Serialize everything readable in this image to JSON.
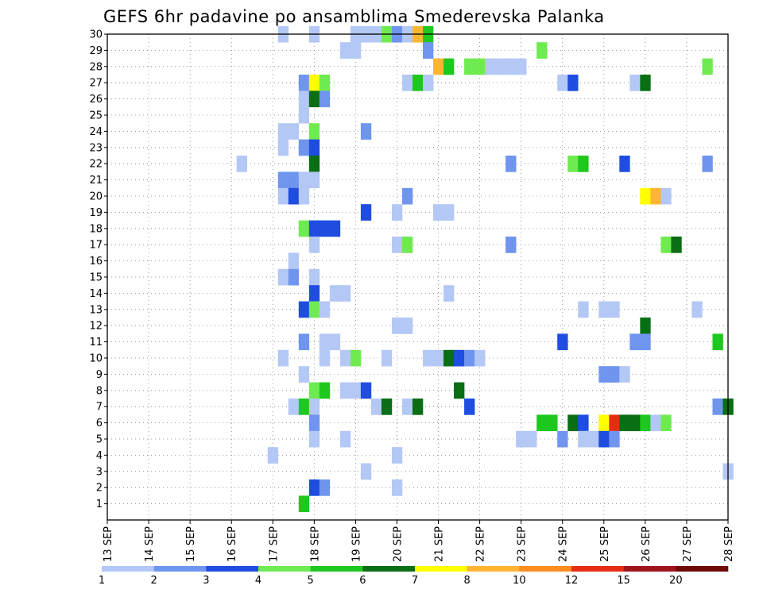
{
  "chart_data": {
    "type": "heatmap",
    "title": "GEFS 6hr padavine po ansamblima Smederevska Palanka",
    "x_tick_labels": [
      "13 SEP",
      "14 SEP",
      "15 SEP",
      "16 SEP",
      "17 SEP",
      "18 SEP",
      "19 SEP",
      "20 SEP",
      "21 SEP",
      "22 SEP",
      "23 SEP",
      "24 SEP",
      "25 SEP",
      "26 SEP",
      "27 SEP",
      "28 SEP"
    ],
    "y_tick_labels": [
      "1",
      "2",
      "3",
      "4",
      "5",
      "6",
      "7",
      "8",
      "9",
      "10",
      "11",
      "12",
      "13",
      "14",
      "15",
      "16",
      "17",
      "18",
      "19",
      "20",
      "21",
      "22",
      "23",
      "24",
      "25",
      "26",
      "27",
      "28",
      "29",
      "30"
    ],
    "x_range_days": [
      0,
      15
    ],
    "y_range_members": [
      0,
      30
    ],
    "time_step_hours": 6,
    "grid": "dotted",
    "legend_position": "bottom",
    "color_scale": {
      "labels": [
        "1",
        "2",
        "3",
        "4",
        "5",
        "6",
        "7",
        "8",
        "10",
        "12",
        "15",
        "20"
      ],
      "colors": [
        "#b4c8f5",
        "#6f95ee",
        "#1e4de0",
        "#6eeb50",
        "#1ec81e",
        "#0a6e14",
        "#ffff00",
        "#ffb432",
        "#ff8c1e",
        "#e62d14",
        "#a0141e",
        "#6e0a0a"
      ]
    },
    "cells": [
      {
        "member": 30,
        "day": 4.25,
        "level": 0
      },
      {
        "member": 30,
        "day": 5.0,
        "level": 0
      },
      {
        "member": 30,
        "day": 6.0,
        "level": 0
      },
      {
        "member": 30,
        "day": 6.25,
        "level": 0
      },
      {
        "member": 30,
        "day": 6.5,
        "level": 0
      },
      {
        "member": 30,
        "day": 6.75,
        "level": 3
      },
      {
        "member": 30,
        "day": 7.0,
        "level": 1
      },
      {
        "member": 30,
        "day": 7.25,
        "level": 0
      },
      {
        "member": 30,
        "day": 7.5,
        "level": 7
      },
      {
        "member": 30,
        "day": 7.75,
        "level": 4
      },
      {
        "member": 29,
        "day": 5.75,
        "level": 0
      },
      {
        "member": 29,
        "day": 6.0,
        "level": 0
      },
      {
        "member": 29,
        "day": 7.75,
        "level": 1
      },
      {
        "member": 29,
        "day": 10.5,
        "level": 3
      },
      {
        "member": 28,
        "day": 8.0,
        "level": 7
      },
      {
        "member": 28,
        "day": 8.25,
        "level": 4
      },
      {
        "member": 28,
        "day": 8.75,
        "level": 3
      },
      {
        "member": 28,
        "day": 9.0,
        "level": 3
      },
      {
        "member": 28,
        "day": 9.25,
        "level": 0
      },
      {
        "member": 28,
        "day": 9.5,
        "level": 0
      },
      {
        "member": 28,
        "day": 9.75,
        "level": 0
      },
      {
        "member": 28,
        "day": 10.0,
        "level": 0
      },
      {
        "member": 28,
        "day": 14.5,
        "level": 3
      },
      {
        "member": 27,
        "day": 4.75,
        "level": 1
      },
      {
        "member": 27,
        "day": 5.0,
        "level": 6
      },
      {
        "member": 27,
        "day": 5.25,
        "level": 3
      },
      {
        "member": 27,
        "day": 7.25,
        "level": 0
      },
      {
        "member": 27,
        "day": 7.5,
        "level": 4
      },
      {
        "member": 27,
        "day": 7.75,
        "level": 0
      },
      {
        "member": 27,
        "day": 11.0,
        "level": 0
      },
      {
        "member": 27,
        "day": 11.25,
        "level": 2
      },
      {
        "member": 27,
        "day": 12.75,
        "level": 0
      },
      {
        "member": 27,
        "day": 13.0,
        "level": 5
      },
      {
        "member": 26,
        "day": 4.75,
        "level": 0
      },
      {
        "member": 26,
        "day": 5.0,
        "level": 5
      },
      {
        "member": 26,
        "day": 5.25,
        "level": 1
      },
      {
        "member": 25,
        "day": 4.75,
        "level": 0
      },
      {
        "member": 24,
        "day": 4.25,
        "level": 0
      },
      {
        "member": 24,
        "day": 4.5,
        "level": 0
      },
      {
        "member": 24,
        "day": 5.0,
        "level": 3
      },
      {
        "member": 24,
        "day": 6.25,
        "level": 1
      },
      {
        "member": 23,
        "day": 4.25,
        "level": 0
      },
      {
        "member": 23,
        "day": 4.75,
        "level": 1
      },
      {
        "member": 23,
        "day": 5.0,
        "level": 2
      },
      {
        "member": 22,
        "day": 3.25,
        "level": 0
      },
      {
        "member": 22,
        "day": 5.0,
        "level": 5
      },
      {
        "member": 22,
        "day": 9.75,
        "level": 1
      },
      {
        "member": 22,
        "day": 11.25,
        "level": 3
      },
      {
        "member": 22,
        "day": 11.5,
        "level": 4
      },
      {
        "member": 22,
        "day": 12.5,
        "level": 2
      },
      {
        "member": 22,
        "day": 14.5,
        "level": 1
      },
      {
        "member": 21,
        "day": 4.25,
        "level": 1
      },
      {
        "member": 21,
        "day": 4.5,
        "level": 1
      },
      {
        "member": 21,
        "day": 4.75,
        "level": 0
      },
      {
        "member": 21,
        "day": 5.0,
        "level": 0
      },
      {
        "member": 20,
        "day": 4.25,
        "level": 0
      },
      {
        "member": 20,
        "day": 4.5,
        "level": 2
      },
      {
        "member": 20,
        "day": 4.75,
        "level": 0
      },
      {
        "member": 20,
        "day": 7.25,
        "level": 1
      },
      {
        "member": 20,
        "day": 13.0,
        "level": 6
      },
      {
        "member": 20,
        "day": 13.25,
        "level": 7
      },
      {
        "member": 20,
        "day": 13.5,
        "level": 0
      },
      {
        "member": 19,
        "day": 6.25,
        "level": 2
      },
      {
        "member": 19,
        "day": 7.0,
        "level": 0
      },
      {
        "member": 19,
        "day": 8.0,
        "level": 0
      },
      {
        "member": 19,
        "day": 8.25,
        "level": 0
      },
      {
        "member": 18,
        "day": 4.75,
        "level": 3
      },
      {
        "member": 18,
        "day": 5.0,
        "level": 2
      },
      {
        "member": 18,
        "day": 5.25,
        "level": 2
      },
      {
        "member": 18,
        "day": 5.5,
        "level": 2
      },
      {
        "member": 17,
        "day": 5.0,
        "level": 0
      },
      {
        "member": 17,
        "day": 7.0,
        "level": 0
      },
      {
        "member": 17,
        "day": 7.25,
        "level": 3
      },
      {
        "member": 17,
        "day": 9.75,
        "level": 1
      },
      {
        "member": 17,
        "day": 13.5,
        "level": 3
      },
      {
        "member": 17,
        "day": 13.75,
        "level": 5
      },
      {
        "member": 16,
        "day": 4.5,
        "level": 0
      },
      {
        "member": 15,
        "day": 4.25,
        "level": 0
      },
      {
        "member": 15,
        "day": 4.5,
        "level": 1
      },
      {
        "member": 15,
        "day": 5.0,
        "level": 0
      },
      {
        "member": 14,
        "day": 5.0,
        "level": 2
      },
      {
        "member": 14,
        "day": 5.5,
        "level": 0
      },
      {
        "member": 14,
        "day": 5.75,
        "level": 0
      },
      {
        "member": 14,
        "day": 8.25,
        "level": 0
      },
      {
        "member": 13,
        "day": 4.75,
        "level": 2
      },
      {
        "member": 13,
        "day": 5.0,
        "level": 3
      },
      {
        "member": 13,
        "day": 5.25,
        "level": 0
      },
      {
        "member": 13,
        "day": 11.5,
        "level": 0
      },
      {
        "member": 13,
        "day": 12.0,
        "level": 0
      },
      {
        "member": 13,
        "day": 12.25,
        "level": 0
      },
      {
        "member": 13,
        "day": 14.25,
        "level": 0
      },
      {
        "member": 12,
        "day": 7.0,
        "level": 0
      },
      {
        "member": 12,
        "day": 7.25,
        "level": 0
      },
      {
        "member": 12,
        "day": 13.0,
        "level": 5
      },
      {
        "member": 11,
        "day": 4.75,
        "level": 1
      },
      {
        "member": 11,
        "day": 5.25,
        "level": 0
      },
      {
        "member": 11,
        "day": 5.5,
        "level": 0
      },
      {
        "member": 11,
        "day": 11.0,
        "level": 2
      },
      {
        "member": 11,
        "day": 12.75,
        "level": 1
      },
      {
        "member": 11,
        "day": 13.0,
        "level": 1
      },
      {
        "member": 11,
        "day": 14.75,
        "level": 4
      },
      {
        "member": 10,
        "day": 4.25,
        "level": 0
      },
      {
        "member": 10,
        "day": 5.25,
        "level": 0
      },
      {
        "member": 10,
        "day": 5.75,
        "level": 0
      },
      {
        "member": 10,
        "day": 6.0,
        "level": 3
      },
      {
        "member": 10,
        "day": 6.75,
        "level": 0
      },
      {
        "member": 10,
        "day": 7.75,
        "level": 0
      },
      {
        "member": 10,
        "day": 8.0,
        "level": 0
      },
      {
        "member": 10,
        "day": 8.25,
        "level": 5
      },
      {
        "member": 10,
        "day": 8.5,
        "level": 2
      },
      {
        "member": 10,
        "day": 8.75,
        "level": 1
      },
      {
        "member": 10,
        "day": 9.0,
        "level": 0
      },
      {
        "member": 9,
        "day": 4.75,
        "level": 0
      },
      {
        "member": 9,
        "day": 12.0,
        "level": 1
      },
      {
        "member": 9,
        "day": 12.25,
        "level": 1
      },
      {
        "member": 9,
        "day": 12.5,
        "level": 0
      },
      {
        "member": 8,
        "day": 5.0,
        "level": 3
      },
      {
        "member": 8,
        "day": 5.25,
        "level": 4
      },
      {
        "member": 8,
        "day": 5.75,
        "level": 0
      },
      {
        "member": 8,
        "day": 6.0,
        "level": 0
      },
      {
        "member": 8,
        "day": 6.25,
        "level": 2
      },
      {
        "member": 8,
        "day": 8.5,
        "level": 5
      },
      {
        "member": 7,
        "day": 4.5,
        "level": 0
      },
      {
        "member": 7,
        "day": 4.75,
        "level": 4
      },
      {
        "member": 7,
        "day": 5.0,
        "level": 0
      },
      {
        "member": 7,
        "day": 6.5,
        "level": 0
      },
      {
        "member": 7,
        "day": 6.75,
        "level": 5
      },
      {
        "member": 7,
        "day": 7.25,
        "level": 0
      },
      {
        "member": 7,
        "day": 7.5,
        "level": 5
      },
      {
        "member": 7,
        "day": 8.75,
        "level": 2
      },
      {
        "member": 7,
        "day": 14.75,
        "level": 1
      },
      {
        "member": 7,
        "day": 15.0,
        "level": 5
      },
      {
        "member": 6,
        "day": 5.0,
        "level": 1
      },
      {
        "member": 6,
        "day": 10.5,
        "level": 4
      },
      {
        "member": 6,
        "day": 10.75,
        "level": 4
      },
      {
        "member": 6,
        "day": 11.25,
        "level": 5
      },
      {
        "member": 6,
        "day": 11.5,
        "level": 2
      },
      {
        "member": 6,
        "day": 12.0,
        "level": 6
      },
      {
        "member": 6,
        "day": 12.25,
        "level": 9
      },
      {
        "member": 6,
        "day": 12.5,
        "level": 5
      },
      {
        "member": 6,
        "day": 12.75,
        "level": 5
      },
      {
        "member": 6,
        "day": 13.0,
        "level": 4
      },
      {
        "member": 6,
        "day": 13.25,
        "level": 0
      },
      {
        "member": 6,
        "day": 13.5,
        "level": 3
      },
      {
        "member": 5,
        "day": 5.0,
        "level": 0
      },
      {
        "member": 5,
        "day": 5.75,
        "level": 0
      },
      {
        "member": 5,
        "day": 10.0,
        "level": 0
      },
      {
        "member": 5,
        "day": 10.25,
        "level": 0
      },
      {
        "member": 5,
        "day": 11.0,
        "level": 1
      },
      {
        "member": 5,
        "day": 11.5,
        "level": 0
      },
      {
        "member": 5,
        "day": 11.75,
        "level": 0
      },
      {
        "member": 5,
        "day": 12.0,
        "level": 2
      },
      {
        "member": 5,
        "day": 12.25,
        "level": 1
      },
      {
        "member": 4,
        "day": 4.0,
        "level": 0
      },
      {
        "member": 4,
        "day": 7.0,
        "level": 0
      },
      {
        "member": 3,
        "day": 6.25,
        "level": 0
      },
      {
        "member": 3,
        "day": 15.0,
        "level": 0
      },
      {
        "member": 2,
        "day": 5.0,
        "level": 2
      },
      {
        "member": 2,
        "day": 5.25,
        "level": 1
      },
      {
        "member": 2,
        "day": 7.0,
        "level": 0
      },
      {
        "member": 1,
        "day": 4.75,
        "level": 4
      }
    ]
  }
}
